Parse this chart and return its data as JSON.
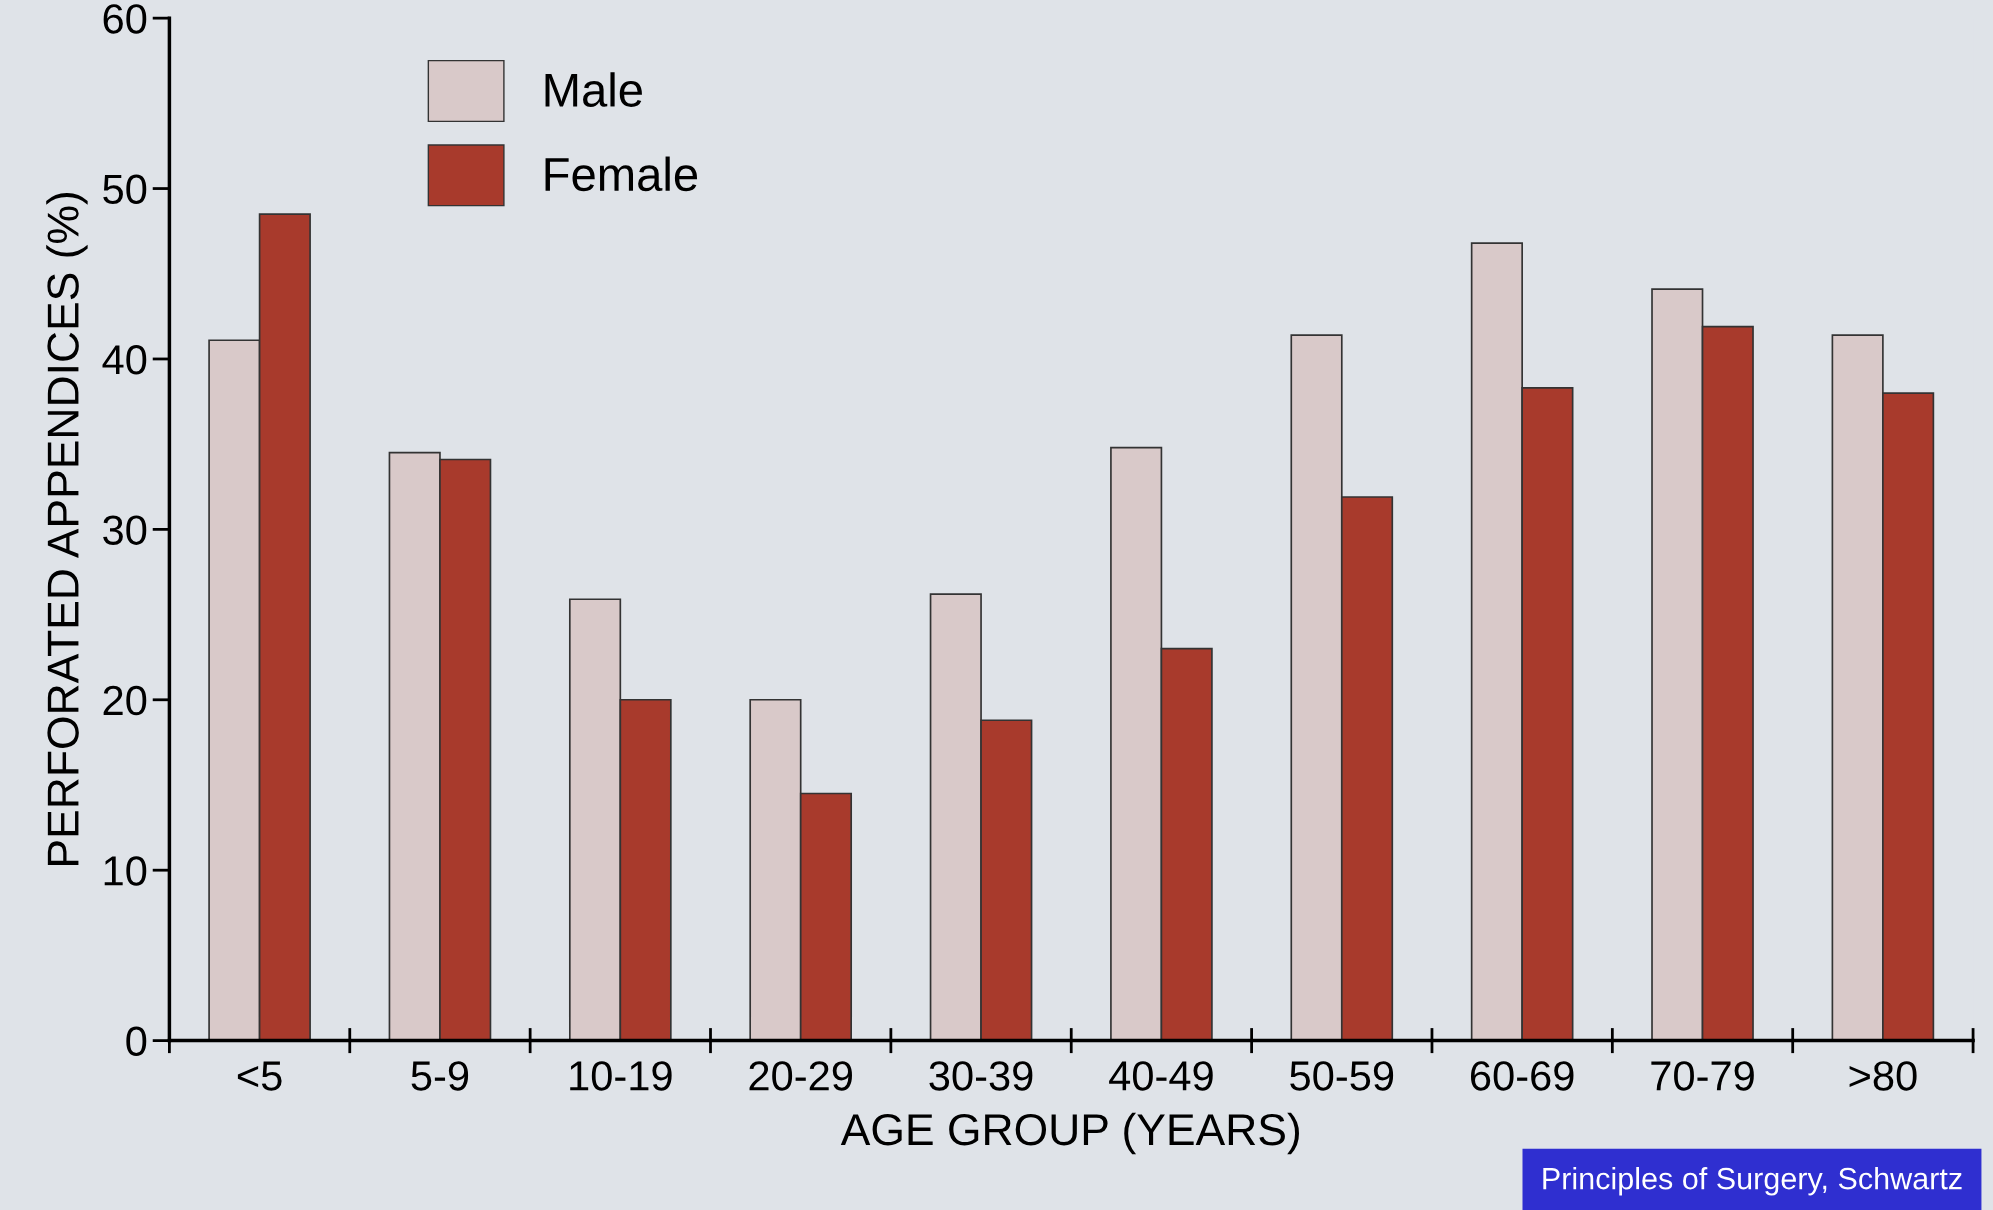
{
  "chart_data": {
    "type": "bar",
    "xlabel": "AGE GROUP (YEARS)",
    "ylabel": "PERFORATED APPENDICES (%)",
    "categories": [
      "<5",
      "5-9",
      "10-19",
      "20-29",
      "30-39",
      "40-49",
      "50-59",
      "60-69",
      "70-79",
      ">80"
    ],
    "series": [
      {
        "name": "Male",
        "color": "#d9c9c9",
        "values": [
          41.1,
          34.5,
          25.9,
          20.0,
          26.2,
          34.8,
          41.4,
          46.8,
          44.1,
          41.4
        ]
      },
      {
        "name": "Female",
        "color": "#a83a2c",
        "values": [
          48.5,
          34.1,
          20.0,
          14.5,
          18.8,
          23.0,
          31.9,
          38.3,
          41.9,
          38.0
        ]
      }
    ],
    "ylim": [
      0,
      60
    ],
    "yticks": [
      0,
      10,
      20,
      30,
      40,
      50,
      60
    ],
    "grid": false,
    "legend": "top left",
    "annotations": [
      "Principles of Surgery, Schwartz"
    ]
  }
}
